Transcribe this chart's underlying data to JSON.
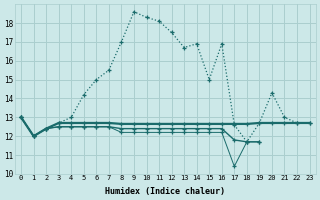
{
  "xlabel": "Humidex (Indice chaleur)",
  "background_color": "#cce8e8",
  "grid_color": "#aacece",
  "line_color": "#1a6b6b",
  "xlim": [
    -0.5,
    23.5
  ],
  "ylim": [
    10,
    19
  ],
  "yticks": [
    10,
    11,
    12,
    13,
    14,
    15,
    16,
    17,
    18
  ],
  "xticks": [
    0,
    1,
    2,
    3,
    4,
    5,
    6,
    7,
    8,
    9,
    10,
    11,
    12,
    13,
    14,
    15,
    16,
    17,
    18,
    19,
    20,
    21,
    22,
    23
  ],
  "series1_x": [
    0,
    1,
    2,
    3,
    4,
    5,
    6,
    7,
    8,
    9,
    10,
    11,
    12,
    13,
    14,
    15,
    16,
    17,
    18,
    19,
    20,
    21,
    22,
    23
  ],
  "series1_y": [
    13.0,
    12.0,
    12.4,
    12.7,
    13.0,
    14.2,
    15.0,
    15.5,
    17.0,
    18.6,
    18.3,
    18.1,
    17.5,
    16.7,
    16.9,
    15.0,
    16.9,
    12.6,
    11.7,
    12.7,
    14.3,
    13.0,
    12.7,
    12.7
  ],
  "series2_x": [
    0,
    1,
    2,
    3,
    4,
    5,
    6,
    7,
    8,
    9,
    10,
    11,
    12,
    13,
    14,
    15,
    16,
    17,
    18,
    19,
    20,
    21,
    22,
    23
  ],
  "series2_y": [
    13.0,
    12.0,
    12.4,
    12.7,
    12.7,
    12.7,
    12.7,
    12.7,
    12.65,
    12.65,
    12.65,
    12.65,
    12.65,
    12.65,
    12.65,
    12.65,
    12.65,
    12.65,
    12.65,
    12.7,
    12.7,
    12.7,
    12.7,
    12.7
  ],
  "series3_x": [
    0,
    1,
    2,
    3,
    4,
    5,
    6,
    7,
    8,
    9,
    10,
    11,
    12,
    13,
    14,
    15,
    16,
    17,
    18,
    19
  ],
  "series3_y": [
    13.0,
    12.0,
    12.4,
    12.5,
    12.5,
    12.5,
    12.5,
    12.5,
    12.4,
    12.4,
    12.4,
    12.4,
    12.4,
    12.4,
    12.4,
    12.4,
    12.4,
    11.8,
    11.7,
    11.7
  ],
  "series4_x": [
    0,
    1,
    2,
    3,
    4,
    5,
    6,
    7,
    8,
    9,
    10,
    11,
    12,
    13,
    14,
    15,
    16,
    17,
    18,
    19
  ],
  "series4_y": [
    13.0,
    12.0,
    12.4,
    12.5,
    12.5,
    12.5,
    12.5,
    12.5,
    12.2,
    12.2,
    12.2,
    12.2,
    12.2,
    12.2,
    12.2,
    12.2,
    12.2,
    10.4,
    11.7,
    11.7
  ]
}
